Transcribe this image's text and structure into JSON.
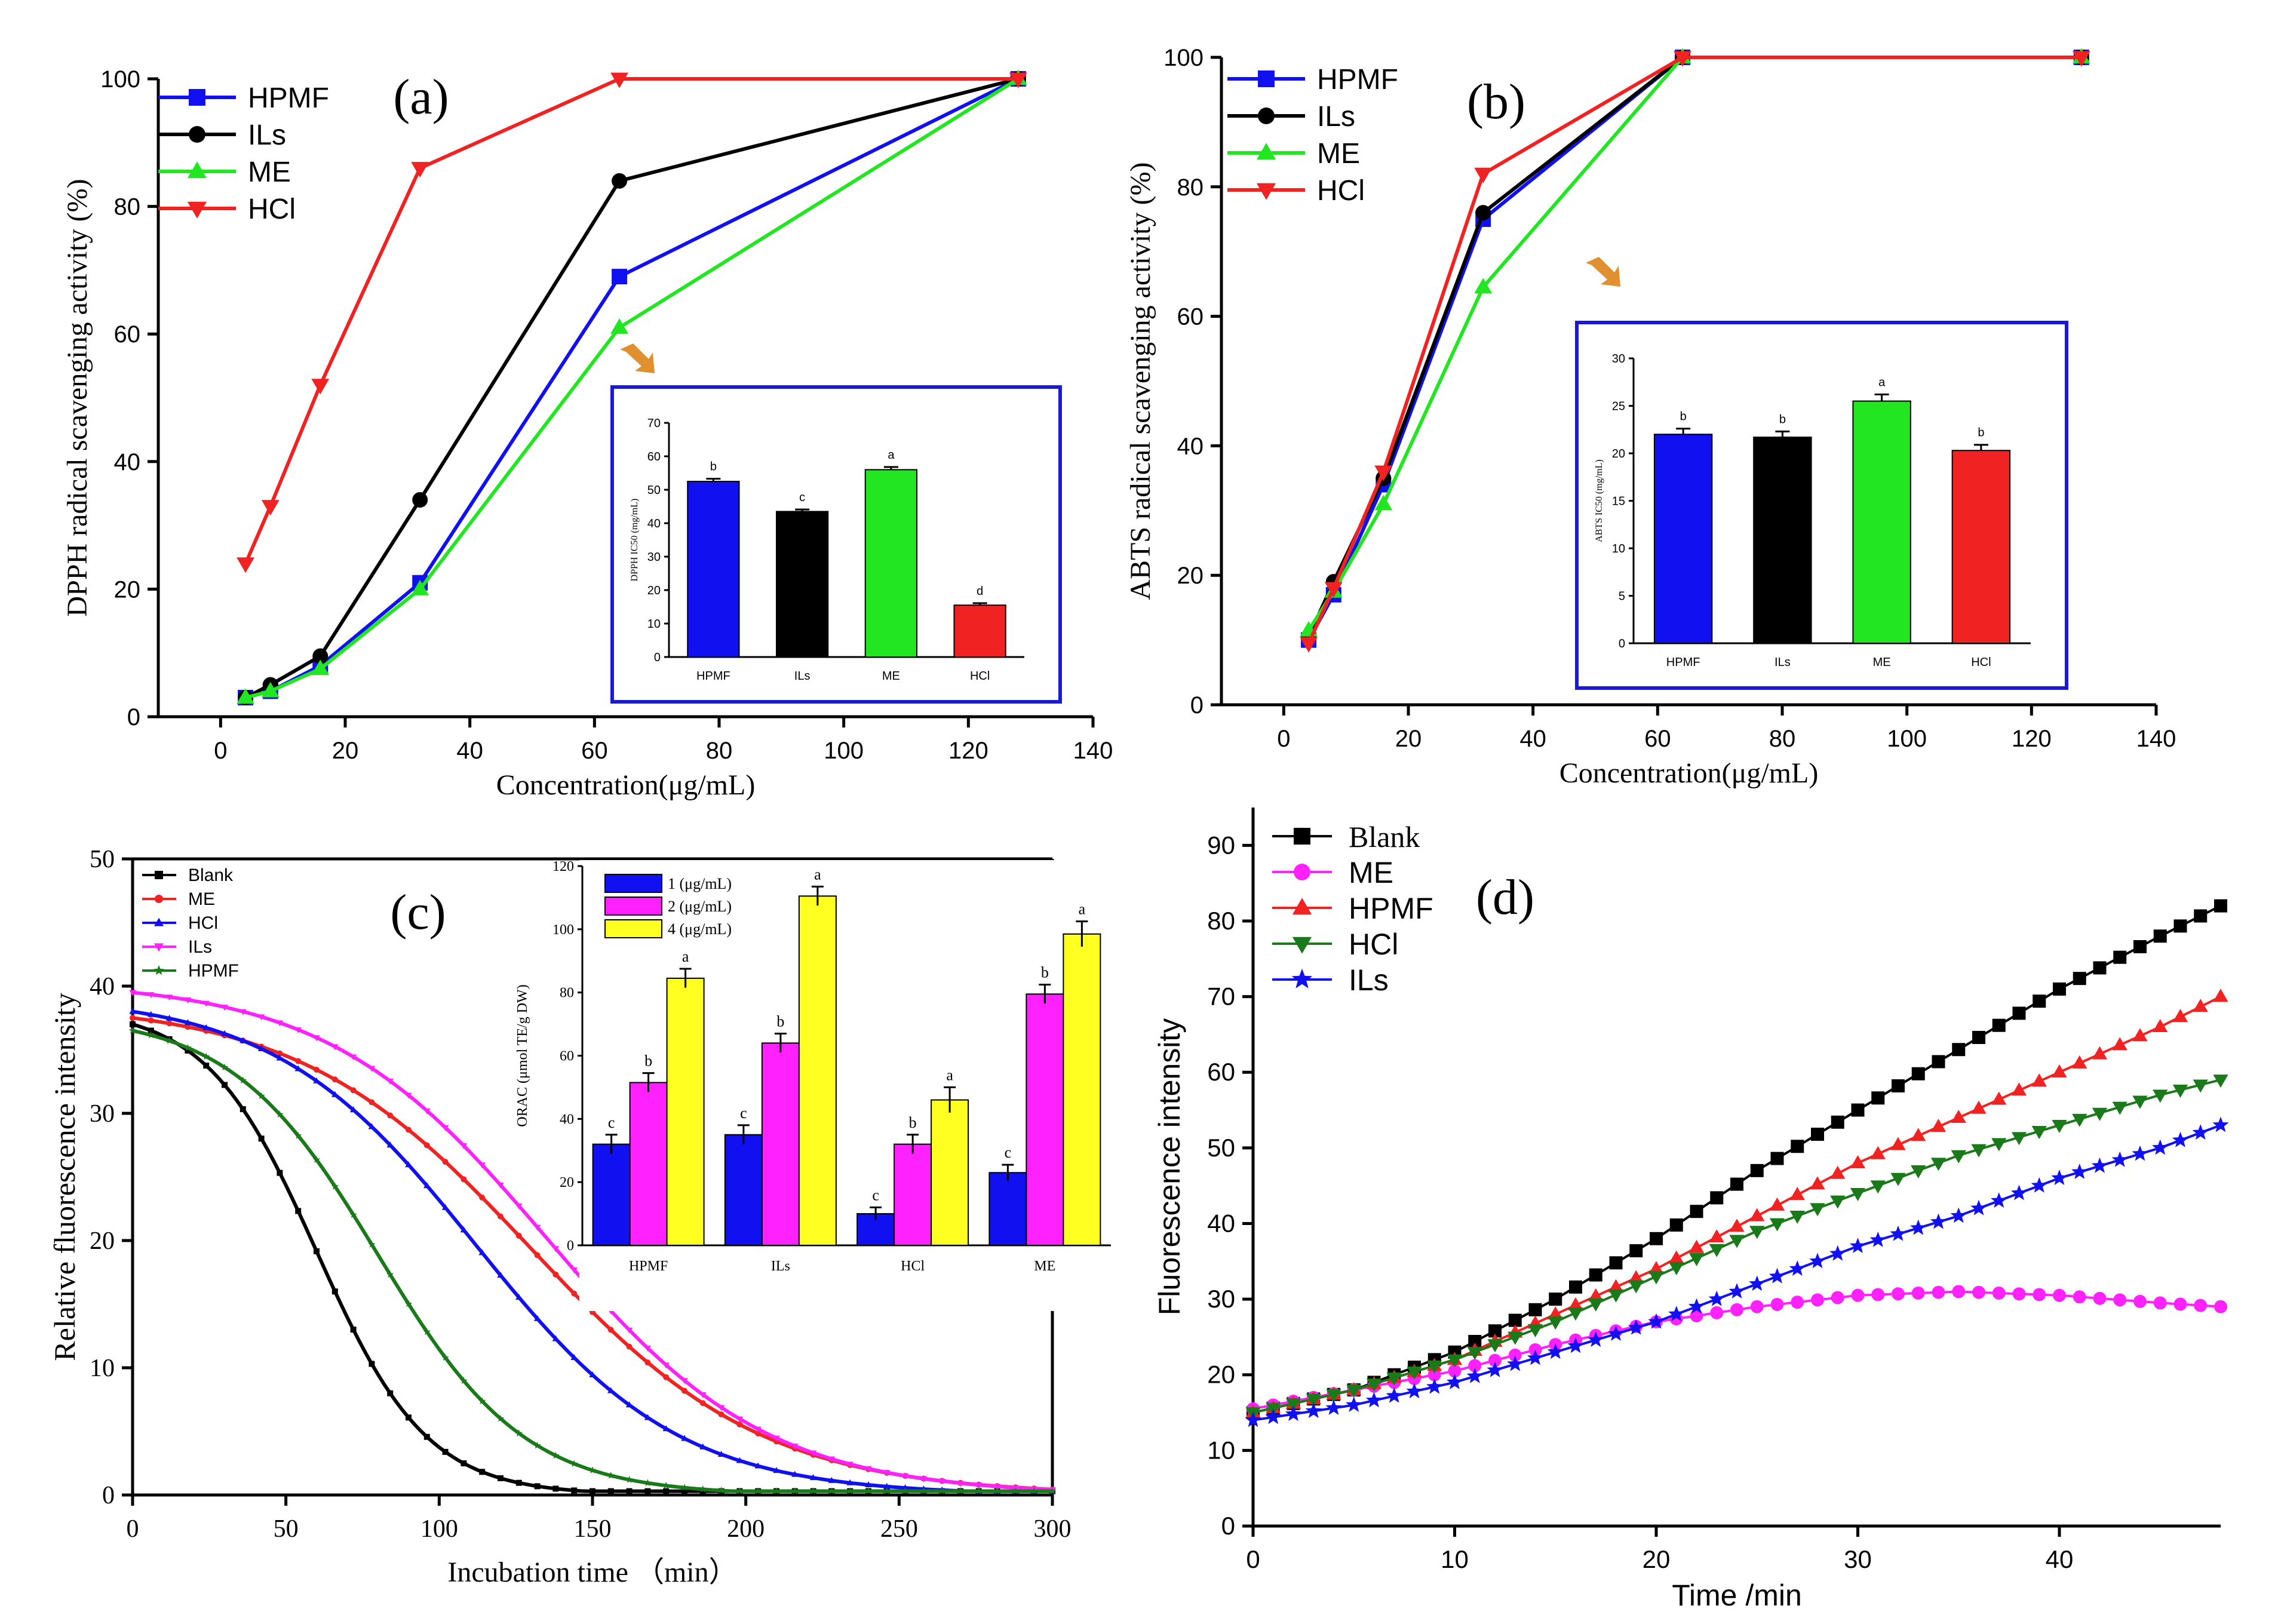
{
  "colors": {
    "blue": "#1010f0",
    "black": "#000000",
    "green": "#22e622",
    "red": "#f02222",
    "magenta": "#ff22ff",
    "yellow": "#ffff22",
    "darkgreen": "#1a7a1a",
    "inset_border": "#1a1ad6",
    "arrow": "#e09030"
  },
  "chart_data": [
    {
      "id": "a",
      "type": "line",
      "panel_label": "(a)",
      "xlabel": "Concentration(μg/mL)",
      "ylabel": "DPPH radical scavenging activity (%)",
      "xlim": [
        -10,
        140
      ],
      "ylim": [
        0,
        100
      ],
      "xticks": [
        "0",
        "20",
        "40",
        "60",
        "80",
        "100",
        "120",
        "140"
      ],
      "yticks": [
        "0",
        "20",
        "40",
        "60",
        "80",
        "100"
      ],
      "x": [
        4,
        8,
        16,
        32,
        64,
        128
      ],
      "series": [
        {
          "name": "HPMF",
          "color": "#1010f0",
          "marker": "square",
          "values": [
            3,
            4,
            8,
            21,
            69,
            100
          ]
        },
        {
          "name": "ILs",
          "color": "#000000",
          "marker": "circle",
          "values": [
            3,
            5,
            9.5,
            34,
            84,
            100
          ]
        },
        {
          "name": "ME",
          "color": "#22e622",
          "marker": "triangle-up",
          "values": [
            3,
            4,
            7.5,
            20,
            61,
            100
          ]
        },
        {
          "name": "HCl",
          "color": "#f02222",
          "marker": "triangle-down",
          "values": [
            24,
            33,
            52,
            86,
            100,
            100
          ]
        }
      ],
      "legend": [
        "HPMF",
        "ILs",
        "ME",
        "HCl"
      ],
      "legend_position": "top-left",
      "inset": {
        "type": "bar",
        "ylabel": "DPPH IC50 (mg/mL)",
        "ylim": [
          0,
          70
        ],
        "yticks": [
          "0",
          "10",
          "20",
          "30",
          "40",
          "50",
          "60",
          "70"
        ],
        "categories": [
          "HPMF",
          "ILs",
          "ME",
          "HCl"
        ],
        "values": [
          52.5,
          43.5,
          56,
          15.5
        ],
        "errors": [
          0.8,
          0.6,
          0.8,
          0.6
        ],
        "letters": [
          "b",
          "c",
          "a",
          "d"
        ],
        "colors": [
          "#1010f0",
          "#000000",
          "#22e622",
          "#f02222"
        ]
      }
    },
    {
      "id": "b",
      "type": "line",
      "panel_label": "(b)",
      "xlabel": "Concentration(μg/mL)",
      "ylabel": "ABTS radical scavenging activity (%)",
      "xlim": [
        -10,
        140
      ],
      "ylim": [
        0,
        100
      ],
      "xticks": [
        "0",
        "20",
        "40",
        "60",
        "80",
        "100",
        "120",
        "140"
      ],
      "yticks": [
        "0",
        "20",
        "40",
        "60",
        "80",
        "100"
      ],
      "x": [
        4,
        8,
        16,
        32,
        64,
        128
      ],
      "series": [
        {
          "name": "HPMF",
          "color": "#1010f0",
          "marker": "square",
          "values": [
            10,
            17,
            34,
            75,
            100,
            100
          ]
        },
        {
          "name": "ILs",
          "color": "#000000",
          "marker": "circle",
          "values": [
            10.5,
            19,
            35,
            76,
            100,
            100
          ]
        },
        {
          "name": "ME",
          "color": "#22e622",
          "marker": "triangle-up",
          "values": [
            11.5,
            17.5,
            31,
            64.5,
            100,
            100
          ]
        },
        {
          "name": "HCl",
          "color": "#f02222",
          "marker": "triangle-down",
          "values": [
            9.5,
            18,
            36,
            82,
            100,
            100
          ]
        }
      ],
      "legend": [
        "HPMF",
        "ILs",
        "ME",
        "HCl"
      ],
      "legend_position": "top-left",
      "inset": {
        "type": "bar",
        "ylabel": "ABTS IC50 (mg/mL)",
        "ylim": [
          0,
          30
        ],
        "yticks": [
          "0",
          "5",
          "10",
          "15",
          "20",
          "25",
          "30"
        ],
        "categories": [
          "HPMF",
          "ILs",
          "ME",
          "HCl"
        ],
        "values": [
          22,
          21.7,
          25.5,
          20.3
        ],
        "errors": [
          0.6,
          0.6,
          0.7,
          0.6
        ],
        "letters": [
          "b",
          "b",
          "a",
          "b"
        ],
        "colors": [
          "#1010f0",
          "#000000",
          "#22e622",
          "#f02222"
        ]
      }
    },
    {
      "id": "c",
      "type": "line",
      "panel_label": "(c)",
      "xlabel": "Incubation time （min）",
      "ylabel": "Relative fluorescence intensity",
      "xlim": [
        0,
        300
      ],
      "ylim": [
        0,
        50
      ],
      "xticks": [
        "0",
        "50",
        "100",
        "150",
        "200",
        "250",
        "300"
      ],
      "yticks": [
        "0",
        "10",
        "20",
        "30",
        "40",
        "50"
      ],
      "series": [
        {
          "name": "Blank",
          "color": "#000000",
          "marker": "square",
          "start": 37,
          "midpoint": 60,
          "scale": 18
        },
        {
          "name": "ME",
          "color": "#f02222",
          "marker": "circle",
          "start": 37.5,
          "midpoint": 130,
          "scale": 38
        },
        {
          "name": "HCl",
          "color": "#1010f0",
          "marker": "triangle-up",
          "start": 38,
          "midpoint": 112,
          "scale": 33
        },
        {
          "name": "ILs",
          "color": "#ff22ff",
          "marker": "triangle-down",
          "start": 39.5,
          "midpoint": 135,
          "scale": 36
        },
        {
          "name": "HPMF",
          "color": "#1a7a1a",
          "marker": "star",
          "start": 36.5,
          "midpoint": 80,
          "scale": 24
        }
      ],
      "legend": [
        "Blank",
        "ME",
        "HCl",
        "ILs",
        "HPMF"
      ],
      "legend_position": "top-left",
      "inset": {
        "type": "bar",
        "ylabel": "ORAC (μmol TE/g DW)",
        "ylim": [
          0,
          120
        ],
        "yticks": [
          "0",
          "20",
          "40",
          "60",
          "80",
          "100",
          "120"
        ],
        "categories": [
          "HPMF",
          "ILs",
          "HCl",
          "ME"
        ],
        "series": [
          {
            "name": "1 (μg/mL)",
            "color": "#1010f0",
            "values": [
              32,
              35,
              10,
              23
            ],
            "errors": [
              3,
              3,
              2,
              2.5
            ],
            "letters": [
              "c",
              "c",
              "c",
              "c"
            ]
          },
          {
            "name": "2 (μg/mL)",
            "color": "#ff22ff",
            "values": [
              51.5,
              64,
              32,
              79.5
            ],
            "errors": [
              3,
              3,
              3,
              3
            ],
            "letters": [
              "b",
              "b",
              "b",
              "b"
            ]
          },
          {
            "name": "4 (μg/mL)",
            "color": "#ffff22",
            "values": [
              84.5,
              110.5,
              46,
              98.5
            ],
            "errors": [
              3,
              3,
              4,
              4
            ],
            "letters": [
              "a",
              "a",
              "a",
              "a"
            ]
          }
        ],
        "legend_position": "top-left"
      }
    },
    {
      "id": "d",
      "type": "line",
      "panel_label": "(d)",
      "xlabel": "Time /min",
      "ylabel": "Fluorescence intensity",
      "xlim": [
        0,
        48
      ],
      "ylim": [
        0,
        95
      ],
      "xticks": [
        "0",
        "10",
        "20",
        "30",
        "40"
      ],
      "yticks": [
        "0",
        "10",
        "20",
        "30",
        "40",
        "50",
        "60",
        "70",
        "80",
        "90"
      ],
      "series": [
        {
          "name": "Blank",
          "color": "#000000",
          "marker": "square",
          "x": [
            0,
            5,
            10,
            15,
            20,
            25,
            30,
            35,
            40,
            45,
            48
          ],
          "values": [
            15,
            18,
            23,
            30,
            38,
            47,
            55,
            63,
            71,
            78,
            82
          ]
        },
        {
          "name": "ME",
          "color": "#ff22ff",
          "marker": "circle",
          "x": [
            0,
            5,
            10,
            15,
            20,
            25,
            30,
            35,
            40,
            45,
            48
          ],
          "values": [
            15.5,
            18,
            20.5,
            24,
            27,
            29,
            30.5,
            31,
            30.5,
            29.5,
            29
          ]
        },
        {
          "name": "HPMF",
          "color": "#f02222",
          "marker": "triangle-up",
          "x": [
            0,
            5,
            10,
            15,
            20,
            25,
            30,
            35,
            40,
            45,
            48
          ],
          "values": [
            15,
            18,
            22,
            28,
            34,
            41,
            48,
            54,
            60,
            66,
            70
          ]
        },
        {
          "name": "HCl",
          "color": "#1a7a1a",
          "marker": "triangle-down",
          "x": [
            0,
            5,
            10,
            15,
            20,
            25,
            30,
            35,
            40,
            45,
            48
          ],
          "values": [
            15,
            18,
            22,
            27,
            33,
            39,
            44,
            49,
            53,
            57,
            59
          ]
        },
        {
          "name": "ILs",
          "color": "#1010f0",
          "marker": "star",
          "x": [
            0,
            5,
            10,
            15,
            20,
            25,
            30,
            35,
            40,
            45,
            48
          ],
          "values": [
            14,
            16,
            19,
            23,
            27,
            32,
            37,
            41,
            46,
            50,
            53
          ]
        }
      ],
      "legend": [
        "Blank",
        "ME",
        "HPMF",
        "HCl",
        "ILs"
      ],
      "legend_position": "top-left"
    }
  ]
}
